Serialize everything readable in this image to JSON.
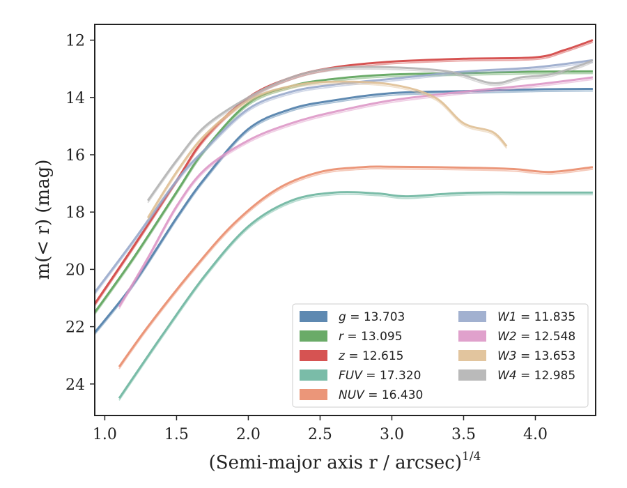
{
  "chart_data": {
    "type": "line",
    "xlabel": "(Semi-major axis r / arcsec)",
    "xlabel_sup": "1/4",
    "ylabel": "m(< r) (mag)",
    "xlim": [
      0.93,
      4.42
    ],
    "ylim": [
      25.1,
      11.45
    ],
    "y_inverted": true,
    "grid": false,
    "legend_position": "lower-right",
    "x_ticks": [
      1.0,
      1.5,
      2.0,
      2.5,
      3.0,
      3.5,
      4.0
    ],
    "x_tick_labels": [
      "1.0",
      "1.5",
      "2.0",
      "2.5",
      "3.0",
      "3.5",
      "4.0"
    ],
    "y_ticks": [
      12,
      14,
      16,
      18,
      20,
      22,
      24
    ],
    "y_tick_labels": [
      "12",
      "14",
      "16",
      "18",
      "20",
      "22",
      "24"
    ],
    "series": [
      {
        "name": "g = 13.703",
        "label_var": "g",
        "label_value": "13.703",
        "color": "#4c7ca8",
        "x": [
          0.93,
          1.2,
          1.5,
          1.7,
          2.0,
          2.3,
          2.6,
          3.0,
          3.5,
          4.0,
          4.4
        ],
        "y": [
          22.2,
          20.5,
          18.2,
          16.8,
          15.1,
          14.4,
          14.1,
          13.85,
          13.78,
          13.72,
          13.7
        ]
      },
      {
        "name": "r = 13.095",
        "label_var": "r",
        "label_value": "13.095",
        "color": "#5aa258",
        "x": [
          0.93,
          1.2,
          1.5,
          1.7,
          2.0,
          2.3,
          2.6,
          3.0,
          3.5,
          4.0,
          4.4
        ],
        "y": [
          21.5,
          19.6,
          17.3,
          15.8,
          14.2,
          13.6,
          13.35,
          13.2,
          13.15,
          13.1,
          13.09
        ]
      },
      {
        "name": "z = 12.615",
        "label_var": "z",
        "label_value": "12.615",
        "color": "#d1403f",
        "x": [
          0.93,
          1.2,
          1.5,
          1.7,
          2.0,
          2.3,
          2.6,
          3.0,
          3.5,
          4.0,
          4.2,
          4.4
        ],
        "y": [
          21.2,
          19.2,
          16.9,
          15.4,
          14.0,
          13.3,
          12.95,
          12.75,
          12.65,
          12.6,
          12.35,
          12.0
        ]
      },
      {
        "name": "FUV = 17.320",
        "label_var": "FUV",
        "label_value": "17.320",
        "color": "#6bb59e",
        "x": [
          1.1,
          1.4,
          1.7,
          2.0,
          2.3,
          2.6,
          2.9,
          3.1,
          3.5,
          4.0,
          4.4
        ],
        "y": [
          24.5,
          22.3,
          20.2,
          18.5,
          17.6,
          17.32,
          17.35,
          17.45,
          17.33,
          17.32,
          17.32
        ]
      },
      {
        "name": "NUV = 16.430",
        "label_var": "NUV",
        "label_value": "16.430",
        "color": "#e98b6a",
        "x": [
          1.1,
          1.3,
          1.6,
          1.9,
          2.2,
          2.5,
          2.8,
          3.0,
          3.5,
          3.85,
          4.1,
          4.4
        ],
        "y": [
          23.4,
          22.0,
          20.1,
          18.4,
          17.2,
          16.6,
          16.43,
          16.42,
          16.45,
          16.5,
          16.6,
          16.43
        ]
      },
      {
        "name": "W1 = 11.835",
        "label_var": "W1",
        "label_value": "11.835",
        "color": "#98a9cb",
        "x": [
          0.93,
          1.2,
          1.5,
          1.7,
          2.0,
          2.3,
          2.6,
          3.0,
          3.5,
          4.0,
          4.4
        ],
        "y": [
          20.8,
          19.0,
          16.9,
          15.8,
          14.4,
          13.8,
          13.55,
          13.35,
          13.1,
          12.95,
          12.7
        ]
      },
      {
        "name": "W2 = 12.548",
        "label_var": "W2",
        "label_value": "12.548",
        "color": "#dd97c6",
        "x": [
          1.1,
          1.3,
          1.5,
          1.7,
          2.0,
          2.3,
          2.6,
          3.0,
          3.5,
          4.0,
          4.4
        ],
        "y": [
          21.3,
          19.6,
          17.8,
          16.5,
          15.5,
          14.9,
          14.5,
          14.1,
          13.8,
          13.55,
          13.3
        ]
      },
      {
        "name": "W3 = 13.653",
        "label_var": "W3",
        "label_value": "13.653",
        "color": "#dfbf94",
        "x": [
          1.3,
          1.5,
          1.7,
          2.0,
          2.3,
          2.6,
          3.0,
          3.3,
          3.5,
          3.7,
          3.8
        ],
        "y": [
          18.2,
          16.6,
          15.3,
          14.1,
          13.6,
          13.45,
          13.55,
          14.0,
          14.9,
          15.2,
          15.7
        ]
      },
      {
        "name": "W4 = 12.985",
        "label_var": "W4",
        "label_value": "12.985",
        "color": "#b2b2b2",
        "x": [
          1.3,
          1.5,
          1.7,
          2.0,
          2.3,
          2.6,
          3.0,
          3.4,
          3.7,
          3.9,
          4.1,
          4.3,
          4.4
        ],
        "y": [
          17.6,
          16.2,
          15.0,
          14.0,
          13.3,
          12.98,
          12.95,
          13.1,
          13.5,
          13.3,
          13.2,
          12.9,
          12.7
        ]
      }
    ]
  }
}
